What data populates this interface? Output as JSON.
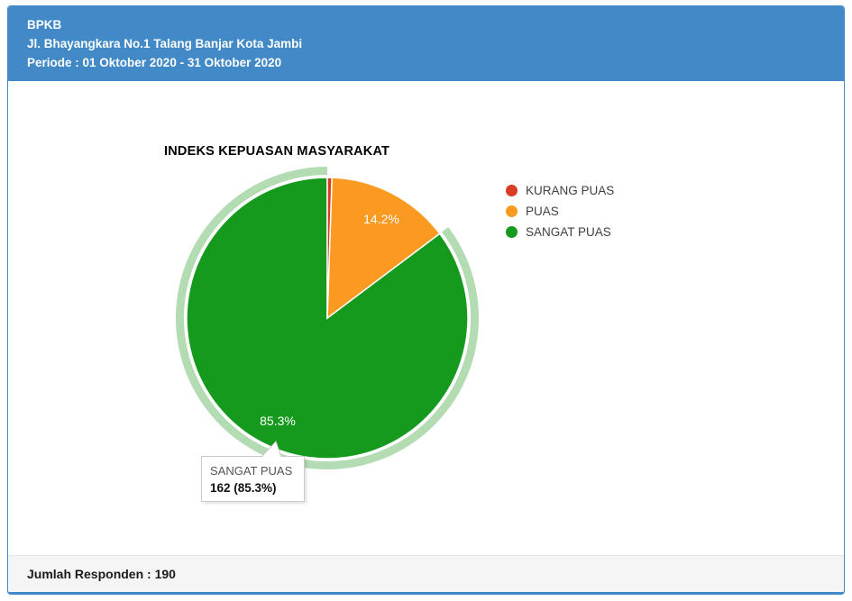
{
  "header": {
    "org": "BPKB",
    "address": "Jl. Bhayangkara No.1 Talang Banjar Kota Jambi",
    "periode": "Periode : 01 Oktober 2020 - 31 Oktober 2020"
  },
  "chart_data": {
    "type": "pie",
    "title": "INDEKS KEPUASAN MASYARAKAT",
    "categories": [
      "KURANG PUAS",
      "PUAS",
      "SANGAT PUAS"
    ],
    "values": [
      1,
      27,
      162
    ],
    "percent_labels": [
      "0.5%",
      "14.2%",
      "85.3%"
    ],
    "colors": [
      "#d93c22",
      "#fb9a20",
      "#169a1e"
    ],
    "legend_position": "right",
    "selected_index": 2,
    "selection_halo_color": "#b3dcb3",
    "slice_stroke_color": "#ffffff",
    "total_respondents": 190
  },
  "tooltip": {
    "label": "SANGAT PUAS",
    "value": "162 (85.3%)"
  },
  "footer": {
    "total": "Jumlah Responden : 190"
  },
  "colors": {
    "accent_blue": "#4189c7",
    "footer_bg": "#f5f5f5",
    "card_bg": "#ffffff"
  }
}
